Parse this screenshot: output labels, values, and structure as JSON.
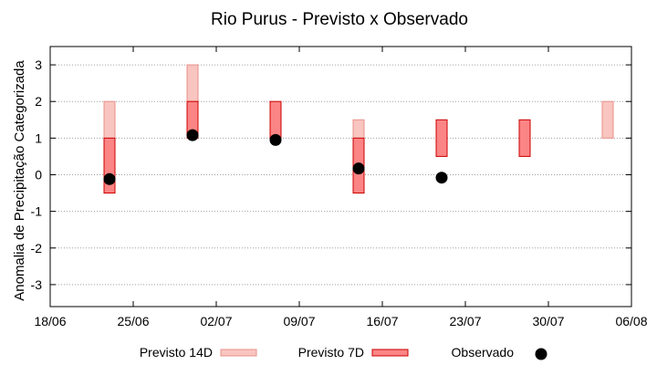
{
  "chart_data": {
    "type": "bar",
    "title": "Rio Purus - Previsto x Observado",
    "xlabel": "",
    "ylabel": "Anomalia de Precipitação Categorizada",
    "x_ticks": [
      "18/06",
      "25/06",
      "02/07",
      "09/07",
      "16/07",
      "23/07",
      "30/07",
      "06/08"
    ],
    "y_ticks": [
      "-3",
      "-2",
      "-1",
      "0",
      "1",
      "2",
      "3"
    ],
    "ylim": [
      -3.6,
      3.5
    ],
    "xlim": [
      "18/06",
      "06/08"
    ],
    "grid": "horizontal-dotted",
    "legend_position": "bottom",
    "series": [
      {
        "name": "Previsto 14D",
        "color": "#f9c5c0",
        "border": "#e8908a",
        "ranges": [
          {
            "x": "23/06",
            "low": 1,
            "high": 2
          },
          {
            "x": "30/06",
            "low": 2,
            "high": 3
          },
          {
            "x": "14/07",
            "low": 1,
            "high": 1.5
          },
          {
            "x": "04/08",
            "low": 1,
            "high": 2
          }
        ]
      },
      {
        "name": "Previsto 7D",
        "color": "#fb8585",
        "border": "#cc0000",
        "ranges": [
          {
            "x": "23/06",
            "low": -0.5,
            "high": 1
          },
          {
            "x": "30/06",
            "low": 1,
            "high": 2
          },
          {
            "x": "07/07",
            "low": 1,
            "high": 2
          },
          {
            "x": "14/07",
            "low": -0.5,
            "high": 1
          },
          {
            "x": "21/07",
            "low": 0.5,
            "high": 1.5
          },
          {
            "x": "28/07",
            "low": 0.5,
            "high": 1.5
          }
        ]
      },
      {
        "name": "Observado",
        "color": "#000000",
        "points": [
          {
            "x": "23/06",
            "y": -0.12
          },
          {
            "x": "30/06",
            "y": 1.08
          },
          {
            "x": "07/07",
            "y": 0.95
          },
          {
            "x": "14/07",
            "y": 0.17
          },
          {
            "x": "21/07",
            "y": -0.08
          }
        ]
      }
    ]
  }
}
